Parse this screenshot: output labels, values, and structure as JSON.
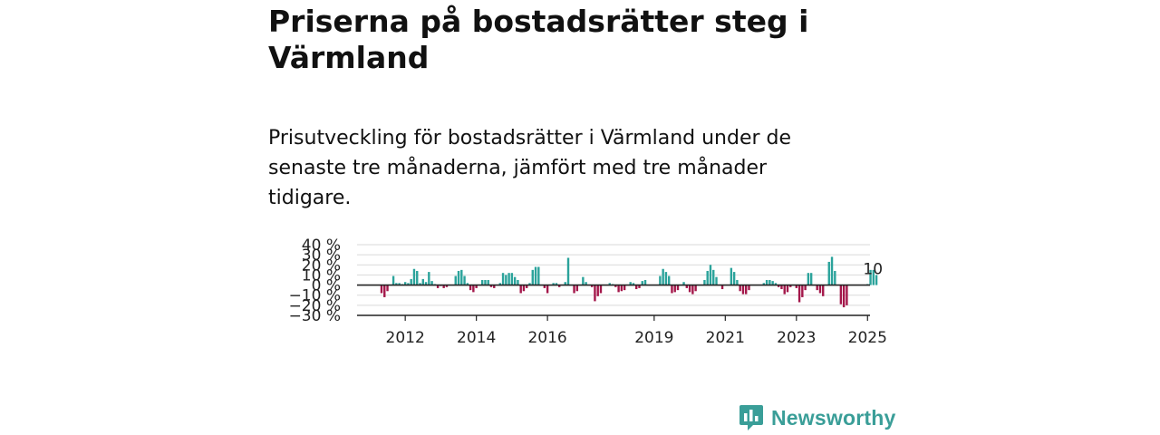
{
  "title": "Priserna på bostadsrätter steg i Värmland",
  "subtitle": "Prisutveckling för bostadsrätter i Värmland under de senaste tre månaderna, jämfört med tre månader tidigare.",
  "brand": {
    "name": "Newsworthy"
  },
  "colors": {
    "positive": "#2ba39b",
    "negative": "#a3174a",
    "brand": "#3a9e98"
  },
  "chart_data": {
    "type": "bar",
    "title": "",
    "xlabel": "",
    "ylabel": "",
    "ylim": [
      -30,
      40
    ],
    "y_ticks": [
      40,
      30,
      20,
      10,
      0,
      -10,
      -20,
      -30
    ],
    "y_tick_labels": [
      "40 %",
      "30 %",
      "20 %",
      "10 %",
      "0 %",
      "−10 %",
      "−20 %",
      "−30 %"
    ],
    "x_tick_labels": [
      "2012",
      "2014",
      "2016",
      "2019",
      "2021",
      "2023",
      "2025"
    ],
    "x_tick_months": [
      8,
      32,
      56,
      92,
      116,
      140,
      164
    ],
    "grid": true,
    "annotation": {
      "text": "10 %",
      "month_index": 163
    },
    "values": [
      -8,
      -12,
      -6,
      0,
      9,
      2,
      2,
      1,
      3,
      2,
      6,
      16,
      14,
      2,
      6,
      3,
      13,
      4,
      1,
      -3,
      -1,
      -3,
      -2,
      0,
      0,
      9,
      14,
      15,
      9,
      2,
      -5,
      -7,
      -3,
      0,
      5,
      5,
      5,
      -2,
      -3,
      0,
      2,
      12,
      10,
      12,
      12,
      8,
      5,
      -8,
      -6,
      -3,
      2,
      15,
      18,
      18,
      0,
      -3,
      -8,
      0,
      2,
      2,
      -2,
      0,
      3,
      27,
      0,
      -8,
      -6,
      0,
      8,
      3,
      0,
      -2,
      -16,
      -11,
      -8,
      0,
      0,
      2,
      1,
      -2,
      -7,
      -6,
      -5,
      0,
      3,
      2,
      -4,
      -3,
      4,
      5,
      0,
      0,
      0,
      0,
      9,
      16,
      13,
      9,
      -8,
      -7,
      -5,
      0,
      3,
      -3,
      -7,
      -9,
      -6,
      0,
      0,
      5,
      14,
      20,
      15,
      8,
      0,
      -4,
      0,
      0,
      17,
      13,
      5,
      -6,
      -9,
      -9,
      -5,
      0,
      0,
      0,
      0,
      2,
      5,
      5,
      4,
      2,
      -2,
      -4,
      -9,
      -7,
      -2,
      0,
      -3,
      -17,
      -12,
      -5,
      12,
      12,
      0,
      -5,
      -8,
      -11,
      0,
      23,
      28,
      14,
      0,
      -19,
      -22,
      -20,
      0,
      0,
      0,
      0,
      0,
      0,
      1,
      15,
      15,
      10
    ]
  }
}
